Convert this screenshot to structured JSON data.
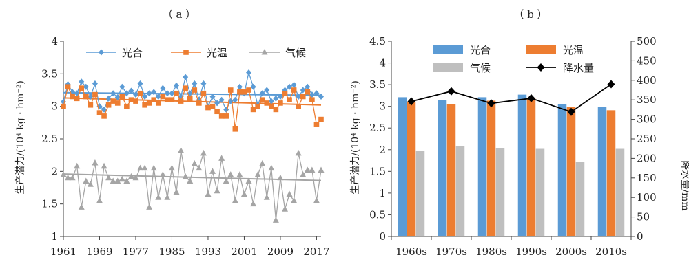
{
  "chart_data": [
    {
      "panel_label": "（ a ）",
      "type": "line",
      "ylabel": "生产潜力/(10⁴ kg · hm⁻²)",
      "ylim": [
        1,
        4
      ],
      "yticks": [
        "1",
        "1.5",
        "2",
        "2.5",
        "3",
        "3.5",
        "4"
      ],
      "xlim": [
        1961,
        2018
      ],
      "xticks": [
        "1961",
        "1969",
        "1977",
        "1985",
        "1993",
        "2001",
        "2009",
        "2017"
      ],
      "x": [
        1961,
        1962,
        1963,
        1964,
        1965,
        1966,
        1967,
        1968,
        1969,
        1970,
        1971,
        1972,
        1973,
        1974,
        1975,
        1976,
        1977,
        1978,
        1979,
        1980,
        1981,
        1982,
        1983,
        1984,
        1985,
        1986,
        1987,
        1988,
        1989,
        1990,
        1991,
        1992,
        1993,
        1994,
        1995,
        1996,
        1997,
        1998,
        1999,
        2000,
        2001,
        2002,
        2003,
        2004,
        2005,
        2006,
        2007,
        2008,
        2009,
        2010,
        2011,
        2012,
        2013,
        2014,
        2015,
        2016,
        2017,
        2018
      ],
      "series": [
        {
          "name": "光合",
          "color": "#5b9bd5",
          "marker": "diamond",
          "values": [
            3.07,
            3.34,
            3.22,
            3.2,
            3.38,
            3.3,
            3.15,
            3.35,
            3.0,
            2.95,
            3.12,
            3.2,
            3.14,
            3.3,
            3.2,
            3.24,
            3.18,
            3.35,
            3.15,
            3.2,
            3.22,
            3.15,
            3.28,
            3.2,
            3.2,
            3.32,
            3.15,
            3.45,
            3.2,
            3.35,
            3.1,
            3.35,
            3.0,
            3.15,
            3.05,
            3.1,
            2.95,
            3.08,
            3.1,
            3.3,
            3.2,
            3.52,
            3.3,
            3.02,
            3.2,
            3.25,
            3.08,
            3.12,
            3.15,
            3.25,
            3.3,
            3.33,
            3.15,
            3.25,
            3.3,
            3.18,
            3.2,
            3.15
          ],
          "trend": [
            3.21,
            3.17
          ]
        },
        {
          "name": "光温",
          "color": "#ed7d31",
          "marker": "square",
          "values": [
            3.0,
            3.3,
            3.15,
            3.12,
            3.28,
            3.15,
            3.02,
            3.18,
            2.9,
            2.85,
            3.02,
            3.08,
            3.05,
            3.15,
            3.0,
            3.1,
            3.08,
            3.2,
            3.02,
            3.05,
            3.1,
            3.05,
            3.15,
            3.1,
            3.1,
            3.2,
            3.08,
            3.28,
            3.12,
            3.25,
            3.05,
            3.2,
            2.98,
            3.0,
            2.92,
            2.85,
            2.85,
            3.25,
            2.65,
            3.22,
            3.22,
            3.25,
            2.95,
            3.0,
            3.1,
            3.05,
            3.0,
            2.95,
            3.05,
            3.2,
            3.1,
            3.25,
            3.0,
            3.15,
            3.22,
            3.1,
            2.72,
            2.8
          ],
          "trend": [
            3.13,
            3.02
          ]
        },
        {
          "name": "气候",
          "color": "#a5a5a5",
          "marker": "triangle",
          "values": [
            1.95,
            1.9,
            1.9,
            2.08,
            1.45,
            1.85,
            1.8,
            2.13,
            1.55,
            2.08,
            1.9,
            1.85,
            1.85,
            1.88,
            1.85,
            1.92,
            1.9,
            2.05,
            2.05,
            1.45,
            2.05,
            1.6,
            1.95,
            1.6,
            2.05,
            1.68,
            2.32,
            1.92,
            1.85,
            2.12,
            2.05,
            2.28,
            1.65,
            2.0,
            1.7,
            2.2,
            1.85,
            1.95,
            1.55,
            1.95,
            1.65,
            1.85,
            1.5,
            1.95,
            2.12,
            1.6,
            2.05,
            1.25,
            1.9,
            1.42,
            1.65,
            1.55,
            2.28,
            1.95,
            2.02,
            2.02,
            1.55,
            2.02
          ],
          "trend": [
            1.96,
            1.86
          ]
        }
      ],
      "legend": "top"
    },
    {
      "panel_label": "（ b ）",
      "type": "bar",
      "ylabel": "生产潜力/(10⁴ kg · hm⁻²)",
      "y2label": "降水量/mm",
      "categories": [
        "1960s",
        "1970s",
        "1980s",
        "1990s",
        "2000s",
        "2010s"
      ],
      "ylim": [
        0,
        4.5
      ],
      "yticks": [
        "0",
        "0.5",
        "1",
        "1.5",
        "2",
        "2.5",
        "3",
        "3.5",
        "4",
        "4.5"
      ],
      "y2lim": [
        0,
        500
      ],
      "y2ticks": [
        "0",
        "50",
        "100",
        "150",
        "200",
        "250",
        "300",
        "350",
        "400",
        "450",
        "500"
      ],
      "series": [
        {
          "name": "光合",
          "color": "#5b9bd5",
          "values": [
            3.21,
            3.14,
            3.21,
            3.27,
            3.05,
            2.99
          ]
        },
        {
          "name": "光温",
          "color": "#ed7d31",
          "values": [
            3.11,
            3.05,
            3.13,
            3.2,
            2.99,
            2.91
          ]
        },
        {
          "name": "气候",
          "color": "#bfbfbf",
          "values": [
            1.98,
            2.08,
            2.04,
            2.02,
            1.72,
            2.02
          ]
        }
      ],
      "line_series": {
        "name": "降水量",
        "color": "#000000",
        "axis": "right",
        "values": [
          346,
          372,
          341,
          354,
          319,
          390
        ]
      },
      "legend": "top"
    }
  ]
}
